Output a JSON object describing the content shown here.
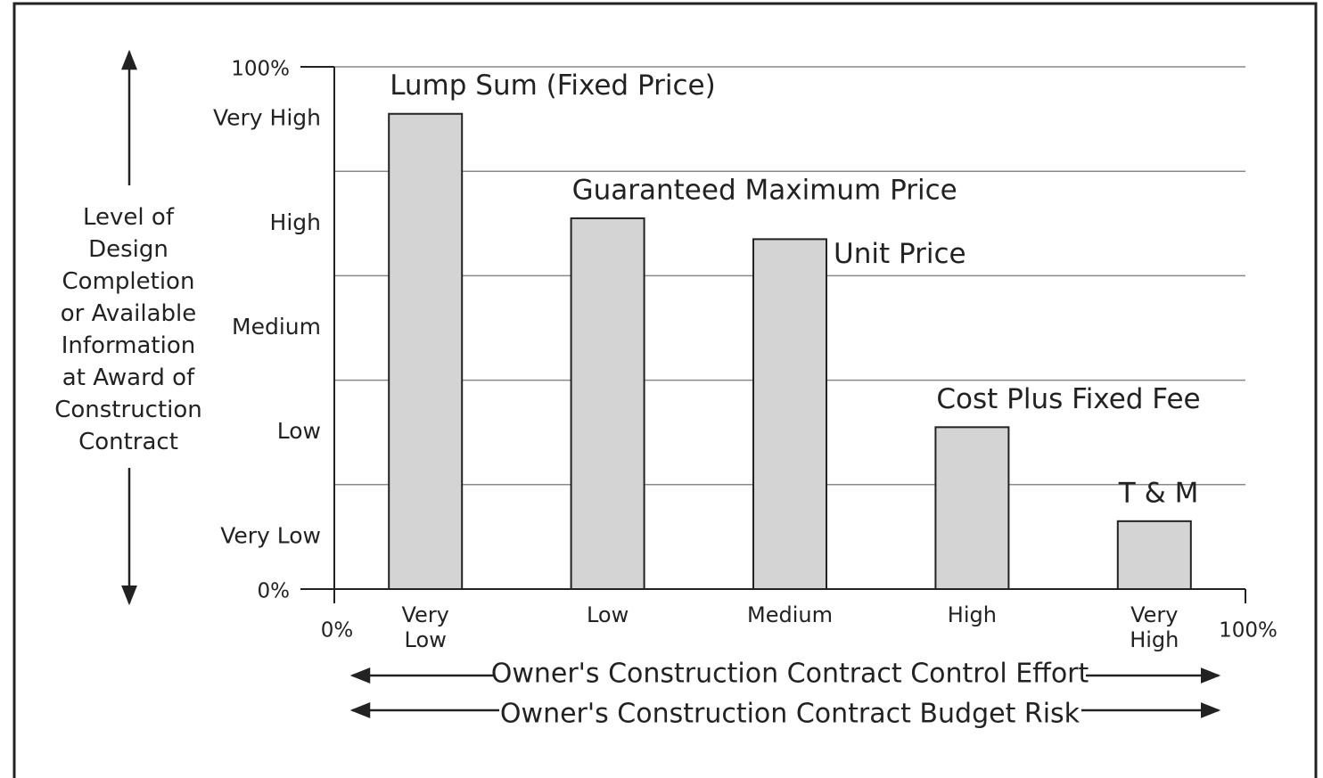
{
  "chart_data": {
    "type": "bar",
    "y_axis_label": "Level of Design Completion or Available Information at Award of Construction Contract",
    "x_axis_labels": [
      "Owner's Construction Contract Control Effort",
      "Owner's Construction Contract Budget Risk"
    ],
    "categories": [
      "Very Low",
      "Low",
      "Medium",
      "High",
      "Very High"
    ],
    "bar_names": [
      "Lump Sum (Fixed Price)",
      "Guaranteed Maximum Price",
      "Unit Price",
      "Cost Plus Fixed Fee",
      "T & M"
    ],
    "values": [
      91,
      71,
      67,
      31,
      13
    ],
    "color": "#d4d4d4",
    "ylim": [
      0,
      100
    ],
    "yticks": [
      {
        "value": 0,
        "label": "0%"
      },
      {
        "value": 100,
        "label": "100%"
      }
    ],
    "ylevels": [
      {
        "value": 10,
        "label": "Very Low"
      },
      {
        "value": 30,
        "label": "Low"
      },
      {
        "value": 50,
        "label": "Medium"
      },
      {
        "value": 70,
        "label": "High"
      },
      {
        "value": 90,
        "label": "Very High"
      }
    ],
    "ygrid": [
      20,
      40,
      60,
      80,
      100
    ],
    "xlim": [
      0,
      100
    ],
    "xticks": [
      {
        "value": 0,
        "label": "0%"
      },
      {
        "value": 100,
        "label": "100%"
      }
    ],
    "grid": true
  }
}
